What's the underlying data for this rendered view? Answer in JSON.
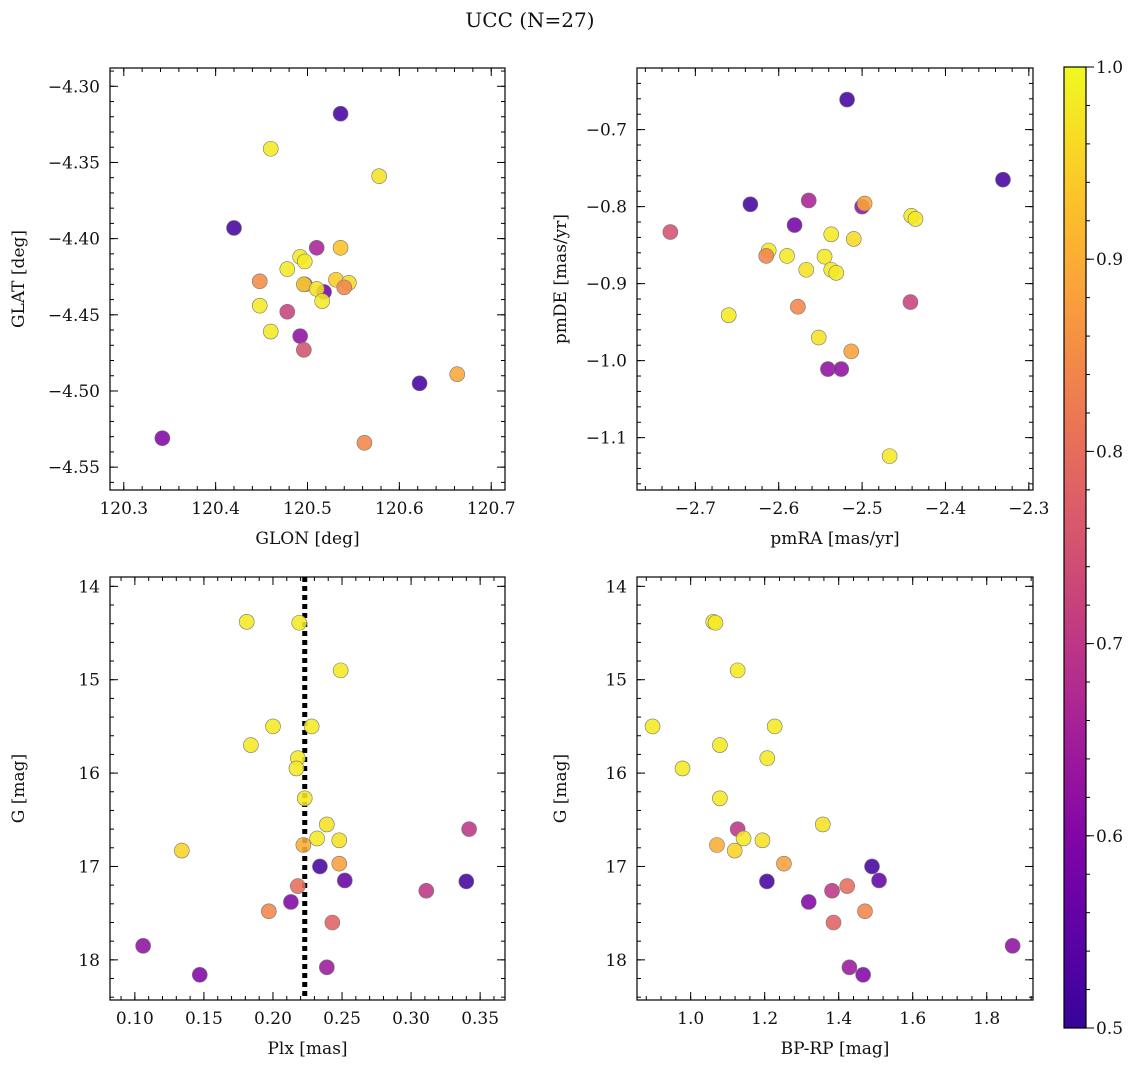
{
  "suptitle": "UCC (N=27)",
  "colorbar": {
    "min": 0.5,
    "max": 1.0,
    "ticks": [
      0.5,
      0.6,
      0.7,
      0.8,
      0.9,
      1.0
    ],
    "tick_labels": [
      "0.5",
      "0.6",
      "0.7",
      "0.8",
      "0.9",
      "1.0"
    ],
    "colormap": "plasma"
  },
  "chart_data": [
    {
      "type": "scatter",
      "xlabel": "GLON [deg]",
      "ylabel": "GLAT [deg]",
      "xlim": [
        120.285,
        120.715
      ],
      "ylim": [
        -4.565,
        -4.288
      ],
      "y_inverted": false,
      "xticks": [
        120.3,
        120.4,
        120.5,
        120.6,
        120.7
      ],
      "xtick_labels": [
        "120.3",
        "120.4",
        "120.5",
        "120.6",
        "120.7"
      ],
      "yticks": [
        -4.55,
        -4.5,
        -4.45,
        -4.4,
        -4.35,
        -4.3
      ],
      "ytick_labels": [
        "−4.55",
        "−4.50",
        "−4.45",
        "−4.40",
        "−4.35",
        "−4.30"
      ],
      "vline": null,
      "points": [
        {
          "x": 120.46,
          "y": -4.341,
          "c": 0.98
        },
        {
          "x": 120.536,
          "y": -4.318,
          "c": 0.52
        },
        {
          "x": 120.578,
          "y": -4.359,
          "c": 0.97
        },
        {
          "x": 120.42,
          "y": -4.393,
          "c": 0.52
        },
        {
          "x": 120.536,
          "y": -4.406,
          "c": 0.93
        },
        {
          "x": 120.51,
          "y": -4.406,
          "c": 0.66
        },
        {
          "x": 120.492,
          "y": -4.412,
          "c": 0.98
        },
        {
          "x": 120.497,
          "y": -4.415,
          "c": 0.98
        },
        {
          "x": 120.478,
          "y": -4.42,
          "c": 0.98
        },
        {
          "x": 120.448,
          "y": -4.428,
          "c": 0.85
        },
        {
          "x": 120.531,
          "y": -4.427,
          "c": 0.94
        },
        {
          "x": 120.545,
          "y": -4.429,
          "c": 0.96
        },
        {
          "x": 120.497,
          "y": -4.43,
          "c": 0.62
        },
        {
          "x": 120.496,
          "y": -4.43,
          "c": 0.95
        },
        {
          "x": 120.518,
          "y": -4.435,
          "c": 0.58
        },
        {
          "x": 120.51,
          "y": -4.433,
          "c": 0.97
        },
        {
          "x": 120.54,
          "y": -4.432,
          "c": 0.84
        },
        {
          "x": 120.448,
          "y": -4.444,
          "c": 0.98
        },
        {
          "x": 120.516,
          "y": -4.441,
          "c": 0.98
        },
        {
          "x": 120.478,
          "y": -4.448,
          "c": 0.72
        },
        {
          "x": 120.46,
          "y": -4.461,
          "c": 0.98
        },
        {
          "x": 120.492,
          "y": -4.464,
          "c": 0.62
        },
        {
          "x": 120.496,
          "y": -4.473,
          "c": 0.75
        },
        {
          "x": 120.622,
          "y": -4.495,
          "c": 0.52
        },
        {
          "x": 120.663,
          "y": -4.489,
          "c": 0.89
        },
        {
          "x": 120.342,
          "y": -4.531,
          "c": 0.6
        },
        {
          "x": 120.562,
          "y": -4.534,
          "c": 0.84
        }
      ]
    },
    {
      "type": "scatter",
      "xlabel": "pmRA [mas/yr]",
      "ylabel": "pmDE [mas/yr]",
      "xlim": [
        -2.77,
        -2.295
      ],
      "ylim": [
        -1.168,
        -0.62
      ],
      "y_inverted": false,
      "xticks": [
        -2.7,
        -2.6,
        -2.5,
        -2.4,
        -2.3
      ],
      "xtick_labels": [
        "−2.7",
        "−2.6",
        "−2.5",
        "−2.4",
        "−2.3"
      ],
      "yticks": [
        -1.1,
        -1.0,
        -0.9,
        -0.8,
        -0.7
      ],
      "ytick_labels": [
        "−1.1",
        "−1.0",
        "−0.9",
        "−0.8",
        "−0.7"
      ],
      "vline": null,
      "points": [
        {
          "x": -2.518,
          "y": -0.661,
          "c": 0.52
        },
        {
          "x": -2.331,
          "y": -0.765,
          "c": 0.52
        },
        {
          "x": -2.634,
          "y": -0.797,
          "c": 0.52
        },
        {
          "x": -2.564,
          "y": -0.792,
          "c": 0.66
        },
        {
          "x": -2.5,
          "y": -0.8,
          "c": 0.62
        },
        {
          "x": -2.497,
          "y": -0.796,
          "c": 0.89
        },
        {
          "x": -2.441,
          "y": -0.812,
          "c": 0.98
        },
        {
          "x": -2.436,
          "y": -0.816,
          "c": 0.98
        },
        {
          "x": -2.73,
          "y": -0.833,
          "c": 0.75
        },
        {
          "x": -2.581,
          "y": -0.824,
          "c": 0.58
        },
        {
          "x": -2.537,
          "y": -0.836,
          "c": 0.98
        },
        {
          "x": -2.51,
          "y": -0.842,
          "c": 0.96
        },
        {
          "x": -2.612,
          "y": -0.857,
          "c": 0.98
        },
        {
          "x": -2.615,
          "y": -0.864,
          "c": 0.84
        },
        {
          "x": -2.59,
          "y": -0.864,
          "c": 0.98
        },
        {
          "x": -2.545,
          "y": -0.865,
          "c": 0.98
        },
        {
          "x": -2.567,
          "y": -0.882,
          "c": 0.97
        },
        {
          "x": -2.537,
          "y": -0.882,
          "c": 0.98
        },
        {
          "x": -2.531,
          "y": -0.886,
          "c": 0.98
        },
        {
          "x": -2.577,
          "y": -0.93,
          "c": 0.84
        },
        {
          "x": -2.442,
          "y": -0.924,
          "c": 0.72
        },
        {
          "x": -2.66,
          "y": -0.941,
          "c": 0.98
        },
        {
          "x": -2.552,
          "y": -0.97,
          "c": 0.97
        },
        {
          "x": -2.513,
          "y": -0.988,
          "c": 0.88
        },
        {
          "x": -2.541,
          "y": -1.011,
          "c": 0.62
        },
        {
          "x": -2.525,
          "y": -1.011,
          "c": 0.62
        },
        {
          "x": -2.467,
          "y": -1.124,
          "c": 0.98
        }
      ]
    },
    {
      "type": "scatter",
      "xlabel": "Plx [mas]",
      "ylabel": "G [mag]",
      "xlim": [
        0.082,
        0.368
      ],
      "ylim": [
        18.43,
        13.9
      ],
      "y_inverted": true,
      "xticks": [
        0.1,
        0.15,
        0.2,
        0.25,
        0.3,
        0.35
      ],
      "xtick_labels": [
        "0.10",
        "0.15",
        "0.20",
        "0.25",
        "0.30",
        "0.35"
      ],
      "yticks": [
        14,
        15,
        16,
        17,
        18
      ],
      "ytick_labels": [
        "14",
        "15",
        "16",
        "17",
        "18"
      ],
      "vline": 0.223,
      "points": [
        {
          "x": 0.181,
          "y": 14.38,
          "c": 0.98
        },
        {
          "x": 0.219,
          "y": 14.39,
          "c": 0.98
        },
        {
          "x": 0.249,
          "y": 14.9,
          "c": 0.98
        },
        {
          "x": 0.2,
          "y": 15.5,
          "c": 0.98
        },
        {
          "x": 0.228,
          "y": 15.5,
          "c": 0.98
        },
        {
          "x": 0.184,
          "y": 15.7,
          "c": 0.98
        },
        {
          "x": 0.218,
          "y": 15.84,
          "c": 0.98
        },
        {
          "x": 0.217,
          "y": 15.95,
          "c": 0.98
        },
        {
          "x": 0.223,
          "y": 16.27,
          "c": 0.98
        },
        {
          "x": 0.239,
          "y": 16.55,
          "c": 0.97
        },
        {
          "x": 0.342,
          "y": 16.6,
          "c": 0.7
        },
        {
          "x": 0.232,
          "y": 16.7,
          "c": 0.98
        },
        {
          "x": 0.248,
          "y": 16.72,
          "c": 0.97
        },
        {
          "x": 0.222,
          "y": 16.77,
          "c": 0.9
        },
        {
          "x": 0.134,
          "y": 16.83,
          "c": 0.95
        },
        {
          "x": 0.248,
          "y": 16.97,
          "c": 0.88
        },
        {
          "x": 0.234,
          "y": 17.0,
          "c": 0.52
        },
        {
          "x": 0.252,
          "y": 17.15,
          "c": 0.56
        },
        {
          "x": 0.34,
          "y": 17.16,
          "c": 0.52
        },
        {
          "x": 0.218,
          "y": 17.21,
          "c": 0.8
        },
        {
          "x": 0.311,
          "y": 17.26,
          "c": 0.7
        },
        {
          "x": 0.213,
          "y": 17.38,
          "c": 0.6
        },
        {
          "x": 0.197,
          "y": 17.48,
          "c": 0.84
        },
        {
          "x": 0.243,
          "y": 17.6,
          "c": 0.78
        },
        {
          "x": 0.106,
          "y": 17.85,
          "c": 0.62
        },
        {
          "x": 0.239,
          "y": 18.08,
          "c": 0.64
        },
        {
          "x": 0.147,
          "y": 18.16,
          "c": 0.6
        }
      ]
    },
    {
      "type": "scatter",
      "xlabel": "BP-RP [mag]",
      "ylabel": "G [mag]",
      "xlim": [
        0.855,
        1.925
      ],
      "ylim": [
        18.43,
        13.9
      ],
      "y_inverted": true,
      "xticks": [
        1.0,
        1.2,
        1.4,
        1.6,
        1.8
      ],
      "xtick_labels": [
        "1.0",
        "1.2",
        "1.4",
        "1.6",
        "1.8"
      ],
      "yticks": [
        14,
        15,
        16,
        17,
        18
      ],
      "ytick_labels": [
        "14",
        "15",
        "16",
        "17",
        "18"
      ],
      "vline": null,
      "points": [
        {
          "x": 1.061,
          "y": 14.38,
          "c": 0.98
        },
        {
          "x": 1.067,
          "y": 14.39,
          "c": 0.98
        },
        {
          "x": 1.127,
          "y": 14.9,
          "c": 0.98
        },
        {
          "x": 0.897,
          "y": 15.5,
          "c": 0.98
        },
        {
          "x": 1.227,
          "y": 15.5,
          "c": 0.98
        },
        {
          "x": 1.079,
          "y": 15.7,
          "c": 0.98
        },
        {
          "x": 1.207,
          "y": 15.84,
          "c": 0.98
        },
        {
          "x": 0.978,
          "y": 15.95,
          "c": 0.98
        },
        {
          "x": 1.079,
          "y": 16.27,
          "c": 0.98
        },
        {
          "x": 1.357,
          "y": 16.55,
          "c": 0.97
        },
        {
          "x": 1.127,
          "y": 16.6,
          "c": 0.7
        },
        {
          "x": 1.143,
          "y": 16.7,
          "c": 0.98
        },
        {
          "x": 1.194,
          "y": 16.72,
          "c": 0.97
        },
        {
          "x": 1.071,
          "y": 16.77,
          "c": 0.9
        },
        {
          "x": 1.119,
          "y": 16.83,
          "c": 0.95
        },
        {
          "x": 1.252,
          "y": 16.97,
          "c": 0.88
        },
        {
          "x": 1.49,
          "y": 17.0,
          "c": 0.52
        },
        {
          "x": 1.509,
          "y": 17.15,
          "c": 0.56
        },
        {
          "x": 1.206,
          "y": 17.16,
          "c": 0.52
        },
        {
          "x": 1.423,
          "y": 17.21,
          "c": 0.8
        },
        {
          "x": 1.382,
          "y": 17.26,
          "c": 0.7
        },
        {
          "x": 1.319,
          "y": 17.38,
          "c": 0.6
        },
        {
          "x": 1.471,
          "y": 17.48,
          "c": 0.84
        },
        {
          "x": 1.386,
          "y": 17.6,
          "c": 0.78
        },
        {
          "x": 1.87,
          "y": 17.85,
          "c": 0.62
        },
        {
          "x": 1.429,
          "y": 18.08,
          "c": 0.64
        },
        {
          "x": 1.466,
          "y": 18.16,
          "c": 0.6
        }
      ]
    }
  ]
}
